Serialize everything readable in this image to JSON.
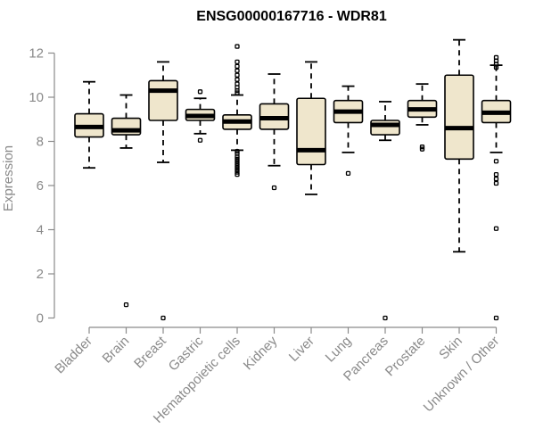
{
  "chart_data": {
    "type": "boxplot",
    "title": "ENSG00000167716 - WDR81",
    "ylabel": "Expression",
    "ylim": [
      0,
      12.8
    ],
    "yticks": [
      0,
      2,
      4,
      6,
      8,
      10,
      12
    ],
    "grid": false,
    "colors": {
      "box_fill": "#efe6cc",
      "stroke": "#000000",
      "axis": "#8a8a8a"
    },
    "categories": [
      "Bladder",
      "Brain",
      "Breast",
      "Gastric",
      "Hematopoietic cells",
      "Kidney",
      "Liver",
      "Lung",
      "Pancreas",
      "Prostate",
      "Skin",
      "Unknown / Other"
    ],
    "boxes": [
      {
        "min": 6.8,
        "q1": 8.2,
        "median": 8.65,
        "q3": 9.25,
        "max": 10.7,
        "outliers": []
      },
      {
        "min": 7.7,
        "q1": 8.3,
        "median": 8.5,
        "q3": 9.05,
        "max": 10.1,
        "outliers": [
          0.6
        ]
      },
      {
        "min": 7.05,
        "q1": 8.95,
        "median": 10.3,
        "q3": 10.75,
        "max": 11.6,
        "outliers": [
          0.0
        ]
      },
      {
        "min": 8.35,
        "q1": 8.95,
        "median": 9.15,
        "q3": 9.45,
        "max": 9.95,
        "outliers": [
          8.05,
          10.25
        ]
      },
      {
        "min": 7.6,
        "q1": 8.55,
        "median": 8.9,
        "q3": 9.2,
        "max": 10.1,
        "outliers": [
          6.5,
          6.6,
          6.7,
          6.8,
          6.9,
          7.0,
          7.1,
          7.2,
          7.3,
          7.45,
          7.55,
          10.2,
          10.3,
          10.45,
          10.6,
          10.8,
          11.0,
          11.2,
          11.4,
          11.6,
          12.3
        ]
      },
      {
        "min": 6.9,
        "q1": 8.55,
        "median": 9.05,
        "q3": 9.7,
        "max": 11.05,
        "outliers": [
          5.9
        ]
      },
      {
        "min": 5.6,
        "q1": 6.95,
        "median": 7.6,
        "q3": 9.95,
        "max": 11.6,
        "outliers": []
      },
      {
        "min": 7.5,
        "q1": 8.85,
        "median": 9.35,
        "q3": 9.85,
        "max": 10.5,
        "outliers": [
          6.55
        ]
      },
      {
        "min": 8.05,
        "q1": 8.3,
        "median": 8.75,
        "q3": 8.95,
        "max": 9.8,
        "outliers": [
          0.0
        ]
      },
      {
        "min": 8.75,
        "q1": 9.1,
        "median": 9.45,
        "q3": 9.85,
        "max": 10.6,
        "outliers": [
          7.65,
          7.75
        ]
      },
      {
        "min": 3.0,
        "q1": 7.2,
        "median": 8.6,
        "q3": 11.0,
        "max": 12.6,
        "outliers": []
      },
      {
        "min": 7.5,
        "q1": 8.85,
        "median": 9.3,
        "q3": 9.85,
        "max": 11.45,
        "outliers": [
          0.0,
          4.05,
          6.1,
          6.3,
          6.5,
          7.1,
          11.35,
          11.5,
          11.65,
          11.8
        ]
      }
    ]
  }
}
